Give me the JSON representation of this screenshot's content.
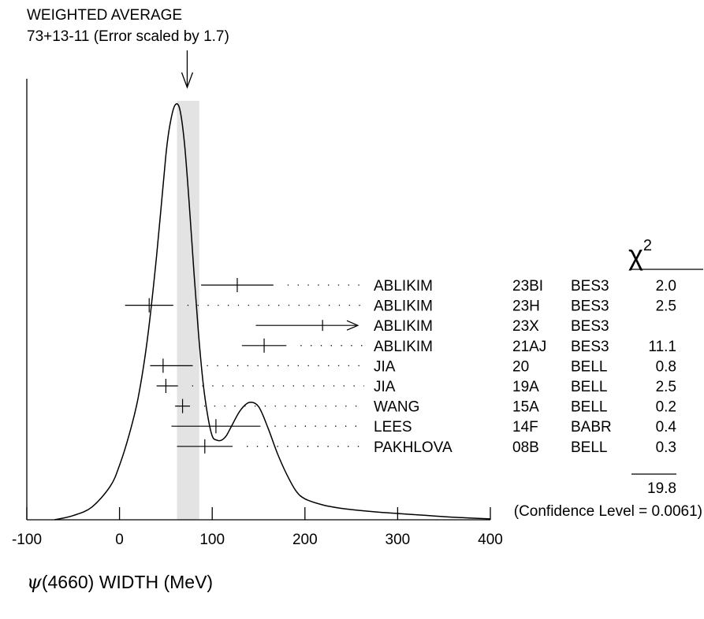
{
  "header": {
    "line1": "WEIGHTED AVERAGE",
    "line2": "73+13-11 (Error scaled by 1.7)"
  },
  "chart_data": {
    "type": "ideogram",
    "xlabel_symbol": "ψ",
    "xlabel_rest": "(4660) WIDTH (MeV)",
    "xlim": [
      -100,
      400
    ],
    "xticks": [
      -100,
      0,
      100,
      200,
      300,
      400
    ],
    "average": {
      "value": 73,
      "err_plus": 13,
      "err_minus": 11,
      "scale": 1.7
    },
    "chi2_header": "χ",
    "chi2_header_exp": "2",
    "measurements": [
      {
        "author": "ABLIKIM",
        "ref": "23BI",
        "exp": "BES3",
        "value": 127,
        "lo": 88,
        "hi": 166,
        "chi2": "2.0"
      },
      {
        "author": "ABLIKIM",
        "ref": "23H",
        "exp": "BES3",
        "value": 32,
        "lo": 6,
        "hi": 58,
        "chi2": "2.5"
      },
      {
        "author": "ABLIKIM",
        "ref": "23X",
        "exp": "BES3",
        "value": 219,
        "lo": 147,
        "hi": 400,
        "chi2": "",
        "arrow": true
      },
      {
        "author": "ABLIKIM",
        "ref": "21AJ",
        "exp": "BES3",
        "value": 156,
        "lo": 132,
        "hi": 180,
        "chi2": "11.1"
      },
      {
        "author": "JIA",
        "ref": "20",
        "exp": "BELL",
        "value": 47,
        "lo": 33,
        "hi": 79,
        "chi2": "0.8"
      },
      {
        "author": "JIA",
        "ref": "19A",
        "exp": "BELL",
        "value": 50,
        "lo": 40,
        "hi": 63,
        "chi2": "2.5"
      },
      {
        "author": "WANG",
        "ref": "15A",
        "exp": "BELL",
        "value": 68,
        "lo": 60,
        "hi": 76,
        "chi2": "0.2"
      },
      {
        "author": "LEES",
        "ref": "14F",
        "exp": "BABR",
        "value": 104,
        "lo": 56,
        "hi": 152,
        "chi2": "0.4"
      },
      {
        "author": "PAKHLOVA",
        "ref": "08B",
        "exp": "BELL",
        "value": 92,
        "lo": 62,
        "hi": 122,
        "chi2": "0.3"
      }
    ],
    "chi2_total": "19.8",
    "confidence": "(Confidence Level = 0.0061)",
    "curve": {
      "x": [
        -70,
        -50,
        -30,
        -10,
        0,
        10,
        20,
        30,
        40,
        50,
        55,
        60,
        65,
        70,
        75,
        80,
        85,
        90,
        95,
        100,
        105,
        110,
        115,
        120,
        130,
        140,
        150,
        160,
        170,
        180,
        190,
        200,
        220,
        240,
        260,
        280,
        300,
        320,
        340,
        360,
        380,
        400
      ],
      "y": [
        0.0,
        0.01,
        0.03,
        0.08,
        0.13,
        0.2,
        0.29,
        0.43,
        0.63,
        0.87,
        0.95,
        0.99,
        0.98,
        0.9,
        0.76,
        0.6,
        0.45,
        0.33,
        0.25,
        0.2,
        0.19,
        0.19,
        0.2,
        0.22,
        0.26,
        0.28,
        0.27,
        0.22,
        0.16,
        0.11,
        0.07,
        0.05,
        0.035,
        0.027,
        0.022,
        0.018,
        0.015,
        0.012,
        0.009,
        0.006,
        0.004,
        0.002
      ]
    }
  }
}
